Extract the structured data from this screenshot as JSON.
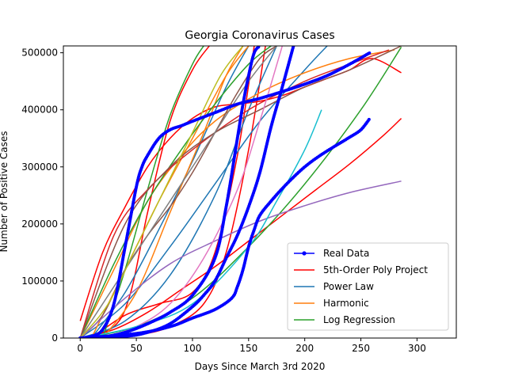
{
  "chart_data": {
    "type": "line",
    "title": "Georgia Coronavirus Cases",
    "xlabel": "Days Since March 3rd 2020",
    "ylabel": "Number of Positive Cases",
    "xlim": [
      -15,
      335
    ],
    "ylim": [
      0,
      512000
    ],
    "xticks": [
      0,
      50,
      100,
      150,
      200,
      250,
      300
    ],
    "yticks": [
      0,
      100000,
      200000,
      300000,
      400000,
      500000
    ],
    "legend_position": "lower-right",
    "legend": [
      {
        "name": "Real Data",
        "color": "#0000ff",
        "marker": true
      },
      {
        "name": "5th-Order Poly Project",
        "color": "#ff0000",
        "marker": false
      },
      {
        "name": "Power Law",
        "color": "#1f77b4",
        "marker": false
      },
      {
        "name": "Harmonic",
        "color": "#ff7f0e",
        "marker": false
      },
      {
        "name": "Log Regression",
        "color": "#2ca02c",
        "marker": false
      }
    ],
    "series": [
      {
        "color": "#0000ff",
        "kind": "data",
        "x": [
          0,
          10,
          20,
          30,
          40,
          50,
          55,
          60,
          70,
          80,
          90,
          100,
          120,
          140,
          160,
          180,
          200,
          220,
          240,
          258
        ],
        "y": [
          0,
          3000,
          15000,
          60000,
          160000,
          265000,
          300000,
          320000,
          350000,
          365000,
          372000,
          380000,
          395000,
          410000,
          420000,
          432000,
          445000,
          460000,
          480000,
          500000
        ]
      },
      {
        "color": "#0000ff",
        "kind": "data",
        "x": [
          0,
          20,
          40,
          60,
          80,
          100,
          120,
          130,
          140,
          145,
          150,
          155,
          160
        ],
        "y": [
          0,
          2000,
          10000,
          25000,
          45000,
          75000,
          140000,
          230000,
          350000,
          410000,
          460000,
          500000,
          512000
        ]
      },
      {
        "color": "#0000ff",
        "kind": "data",
        "x": [
          0,
          40,
          60,
          80,
          100,
          110,
          120,
          130,
          140,
          150,
          160,
          170,
          180,
          190
        ],
        "y": [
          0,
          3000,
          10000,
          25000,
          55000,
          75000,
          100000,
          140000,
          180000,
          230000,
          290000,
          370000,
          440000,
          512000
        ]
      },
      {
        "color": "#0000ff",
        "kind": "data",
        "x": [
          0,
          50,
          80,
          100,
          120,
          135,
          140,
          145,
          150,
          155,
          160,
          170,
          180,
          190,
          200,
          210,
          220,
          230,
          240,
          250,
          258
        ],
        "y": [
          0,
          8000,
          20000,
          35000,
          50000,
          70000,
          90000,
          120000,
          160000,
          190000,
          215000,
          240000,
          262000,
          282000,
          300000,
          315000,
          328000,
          340000,
          352000,
          365000,
          385000
        ]
      },
      {
        "color": "#ff0000",
        "kind": "fit",
        "x": [
          0,
          20,
          40,
          60,
          80,
          100,
          120,
          140,
          160,
          180,
          200,
          220,
          240,
          260,
          286
        ],
        "y": [
          30000,
          150000,
          230000,
          300000,
          350000,
          385000,
          405000,
          410000,
          415000,
          425000,
          440000,
          455000,
          470000,
          490000,
          465000
        ]
      },
      {
        "color": "#ff0000",
        "kind": "fit",
        "x": [
          0,
          30,
          60,
          90,
          120,
          150,
          180,
          210,
          240,
          270,
          286
        ],
        "y": [
          0,
          15000,
          45000,
          85000,
          125000,
          170000,
          215000,
          260000,
          305000,
          355000,
          385000
        ]
      },
      {
        "color": "#ff0000",
        "kind": "fit",
        "x": [
          10,
          40,
          70,
          100,
          120,
          140,
          155
        ],
        "y": [
          0,
          40000,
          60000,
          80000,
          150000,
          320000,
          512000
        ]
      },
      {
        "color": "#ff0000",
        "kind": "fit",
        "x": [
          20,
          50,
          80,
          110,
          130,
          150,
          165
        ],
        "y": [
          0,
          5000,
          20000,
          60000,
          150000,
          330000,
          512000
        ]
      },
      {
        "color": "#ff0000",
        "kind": "fit",
        "x": [
          0,
          30,
          45,
          60,
          80,
          100,
          115
        ],
        "y": [
          0,
          20000,
          80000,
          220000,
          380000,
          470000,
          512000
        ]
      },
      {
        "color": "#1f77b4",
        "kind": "fit",
        "x": [
          0,
          40,
          80,
          120,
          160,
          200,
          220
        ],
        "y": [
          0,
          60000,
          160000,
          270000,
          380000,
          470000,
          512000
        ]
      },
      {
        "color": "#1f77b4",
        "kind": "fit",
        "x": [
          0,
          40,
          80,
          120,
          150,
          175
        ],
        "y": [
          0,
          30000,
          110000,
          250000,
          400000,
          512000
        ]
      },
      {
        "color": "#1f77b4",
        "kind": "fit",
        "x": [
          10,
          40,
          70,
          100,
          130,
          150
        ],
        "y": [
          0,
          80000,
          190000,
          310000,
          440000,
          512000
        ]
      },
      {
        "color": "#ff7f0e",
        "kind": "fit",
        "x": [
          0,
          30,
          60,
          90,
          120,
          160,
          200,
          240,
          280
        ],
        "y": [
          0,
          120000,
          240000,
          320000,
          380000,
          430000,
          465000,
          490000,
          505000
        ]
      },
      {
        "color": "#ff7f0e",
        "kind": "fit",
        "x": [
          10,
          40,
          70,
          100,
          130,
          150
        ],
        "y": [
          0,
          120000,
          240000,
          350000,
          460000,
          512000
        ]
      },
      {
        "color": "#ff7f0e",
        "kind": "fit",
        "x": [
          20,
          50,
          80,
          110,
          130,
          145
        ],
        "y": [
          0,
          80000,
          220000,
          360000,
          460000,
          512000
        ]
      },
      {
        "color": "#2ca02c",
        "kind": "fit",
        "x": [
          0,
          30,
          60,
          90,
          120,
          150,
          170
        ],
        "y": [
          0,
          130000,
          240000,
          330000,
          410000,
          480000,
          512000
        ]
      },
      {
        "color": "#2ca02c",
        "kind": "fit",
        "x": [
          0,
          50,
          100,
          150,
          200,
          250,
          286
        ],
        "y": [
          0,
          20000,
          70000,
          160000,
          270000,
          400000,
          510000
        ]
      },
      {
        "color": "#2ca02c",
        "kind": "fit",
        "x": [
          20,
          40,
          60,
          80,
          100,
          110
        ],
        "y": [
          0,
          120000,
          260000,
          390000,
          480000,
          512000
        ]
      },
      {
        "color": "#d62728",
        "kind": "fit",
        "x": [
          0,
          30,
          60,
          100,
          150,
          200,
          240,
          275
        ],
        "y": [
          0,
          180000,
          260000,
          330000,
          400000,
          450000,
          480000,
          505000
        ]
      },
      {
        "color": "#8c564b",
        "kind": "fit",
        "x": [
          0,
          40,
          80,
          120,
          160,
          200,
          240,
          286
        ],
        "y": [
          0,
          200000,
          300000,
          360000,
          400000,
          440000,
          470000,
          512000
        ]
      },
      {
        "color": "#8c564b",
        "kind": "fit",
        "x": [
          0,
          20,
          40,
          60,
          80,
          100,
          120,
          140,
          160,
          175
        ],
        "y": [
          0,
          40000,
          120000,
          180000,
          230000,
          290000,
          360000,
          430000,
          490000,
          512000
        ]
      },
      {
        "color": "#9467bd",
        "kind": "fit",
        "x": [
          0,
          40,
          80,
          120,
          160,
          200,
          240,
          286
        ],
        "y": [
          0,
          70000,
          130000,
          170000,
          205000,
          232000,
          255000,
          275000
        ]
      },
      {
        "color": "#e377c2",
        "kind": "fit",
        "x": [
          20,
          50,
          80,
          110,
          140,
          160,
          180
        ],
        "y": [
          0,
          20000,
          60000,
          140000,
          260000,
          380000,
          512000
        ]
      },
      {
        "color": "#7f7f7f",
        "kind": "fit",
        "x": [
          0,
          30,
          60,
          90,
          120,
          150,
          175
        ],
        "y": [
          0,
          90000,
          180000,
          270000,
          360000,
          450000,
          512000
        ]
      },
      {
        "color": "#bcbd22",
        "kind": "fit",
        "x": [
          0,
          25,
          50,
          75,
          100,
          125,
          145
        ],
        "y": [
          0,
          60000,
          160000,
          260000,
          360000,
          460000,
          512000
        ]
      },
      {
        "color": "#17becf",
        "kind": "fit",
        "x": [
          0,
          50,
          100,
          150,
          175,
          200,
          215
        ],
        "y": [
          0,
          20000,
          60000,
          160000,
          240000,
          330000,
          400000
        ]
      }
    ]
  }
}
